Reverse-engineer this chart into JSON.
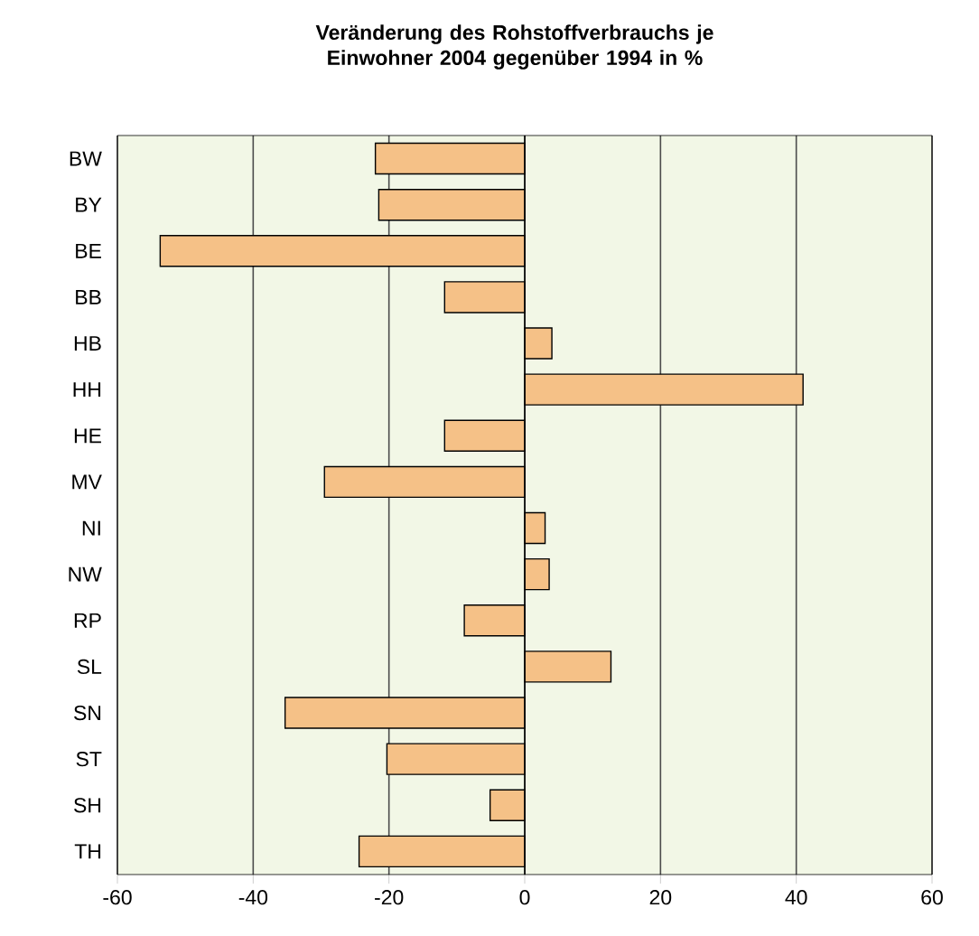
{
  "chart_data": {
    "type": "bar",
    "orientation": "horizontal",
    "title": "Veränderung des Rohstoffverbrauchs je Einwohner 2004 gegenüber 1994 in %",
    "categories": [
      "BW",
      "BY",
      "BE",
      "BB",
      "HB",
      "HH",
      "HE",
      "MV",
      "NI",
      "NW",
      "RP",
      "SL",
      "SN",
      "ST",
      "SH",
      "TH"
    ],
    "values": [
      -22.0,
      -21.5,
      -53.7,
      -11.8,
      4.0,
      41.0,
      -11.8,
      -29.5,
      3.0,
      3.6,
      -8.9,
      12.7,
      -35.3,
      -20.3,
      -5.1,
      -24.4
    ],
    "color": "#f5c187",
    "xlim": [
      -60,
      60
    ],
    "xticks": [
      -60,
      -40,
      -20,
      0,
      20,
      40,
      60
    ],
    "grid": "x"
  }
}
